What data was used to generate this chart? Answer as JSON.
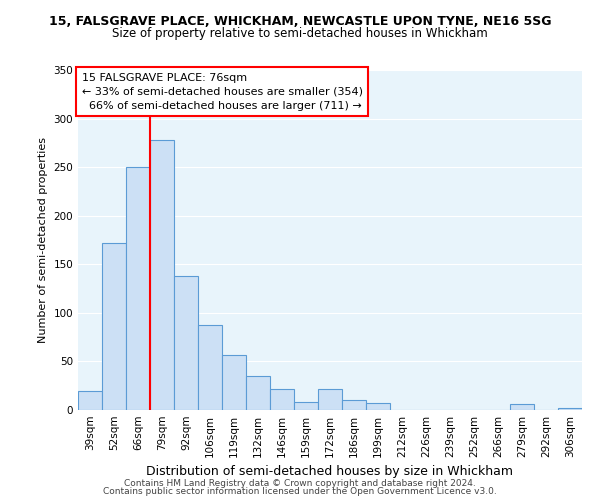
{
  "title1": "15, FALSGRAVE PLACE, WHICKHAM, NEWCASTLE UPON TYNE, NE16 5SG",
  "title2": "Size of property relative to semi-detached houses in Whickham",
  "xlabel": "Distribution of semi-detached houses by size in Whickham",
  "ylabel": "Number of semi-detached properties",
  "categories": [
    "39sqm",
    "52sqm",
    "66sqm",
    "79sqm",
    "92sqm",
    "106sqm",
    "119sqm",
    "132sqm",
    "146sqm",
    "159sqm",
    "172sqm",
    "186sqm",
    "199sqm",
    "212sqm",
    "226sqm",
    "239sqm",
    "252sqm",
    "266sqm",
    "279sqm",
    "292sqm",
    "306sqm"
  ],
  "values": [
    20,
    172,
    250,
    278,
    138,
    88,
    57,
    35,
    22,
    8,
    22,
    10,
    7,
    0,
    0,
    0,
    0,
    0,
    6,
    0,
    2
  ],
  "bar_color": "#cce0f5",
  "bar_edge_color": "#5b9bd5",
  "ylim": [
    0,
    350
  ],
  "yticks": [
    0,
    50,
    100,
    150,
    200,
    250,
    300,
    350
  ],
  "property_label": "15 FALSGRAVE PLACE: 76sqm",
  "pct_smaller": 33,
  "pct_larger": 66,
  "n_smaller": 354,
  "n_larger": 711,
  "vline_x": 2.5,
  "footnote1": "Contains HM Land Registry data © Crown copyright and database right 2024.",
  "footnote2": "Contains public sector information licensed under the Open Government Licence v3.0.",
  "background_color": "#e8f4fb",
  "title1_fontsize": 9,
  "title2_fontsize": 8.5,
  "ylabel_fontsize": 8,
  "xlabel_fontsize": 9,
  "tick_fontsize": 7.5,
  "annotation_fontsize": 8
}
